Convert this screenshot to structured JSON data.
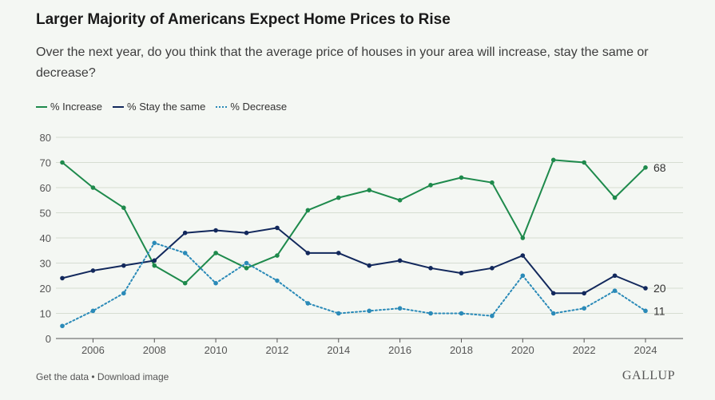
{
  "chart_data": {
    "type": "line",
    "title": "Larger Majority of Americans Expect Home Prices to Rise",
    "subtitle": "Over the next year, do you think that the average price of houses in your area will increase, stay the same or decrease?",
    "x": [
      2005,
      2006,
      2007,
      2008,
      2009,
      2010,
      2011,
      2012,
      2013,
      2014,
      2015,
      2016,
      2017,
      2018,
      2019,
      2020,
      2021,
      2022,
      2023,
      2024
    ],
    "x_tick_labels": [
      "2006",
      "2008",
      "2010",
      "2012",
      "2014",
      "2016",
      "2018",
      "2020",
      "2022",
      "2024"
    ],
    "y_ticks": [
      "0",
      "10",
      "20",
      "30",
      "40",
      "50",
      "60",
      "70",
      "80"
    ],
    "ylim": [
      0,
      80
    ],
    "grid": true,
    "legend_position": "top-left",
    "series": [
      {
        "name": "% Increase",
        "color": "#1e8a4c",
        "style": "solid",
        "values": [
          70,
          60,
          52,
          29,
          22,
          34,
          28,
          33,
          51,
          56,
          59,
          55,
          61,
          64,
          62,
          40,
          71,
          70,
          56,
          68
        ],
        "end_label": "68"
      },
      {
        "name": "% Stay the same",
        "color": "#12285c",
        "style": "solid",
        "values": [
          24,
          27,
          29,
          31,
          42,
          43,
          42,
          44,
          34,
          34,
          29,
          31,
          28,
          26,
          28,
          33,
          18,
          18,
          25,
          20
        ],
        "end_label": "20"
      },
      {
        "name": "% Decrease",
        "color": "#2a8ab8",
        "style": "dotted",
        "values": [
          5,
          11,
          18,
          38,
          34,
          22,
          30,
          23,
          14,
          10,
          11,
          12,
          10,
          10,
          9,
          25,
          10,
          12,
          19,
          11
        ],
        "end_label": "11"
      }
    ]
  },
  "footer": {
    "get_data": "Get the data",
    "separator": " • ",
    "download": "Download image",
    "brand": "GALLUP"
  }
}
